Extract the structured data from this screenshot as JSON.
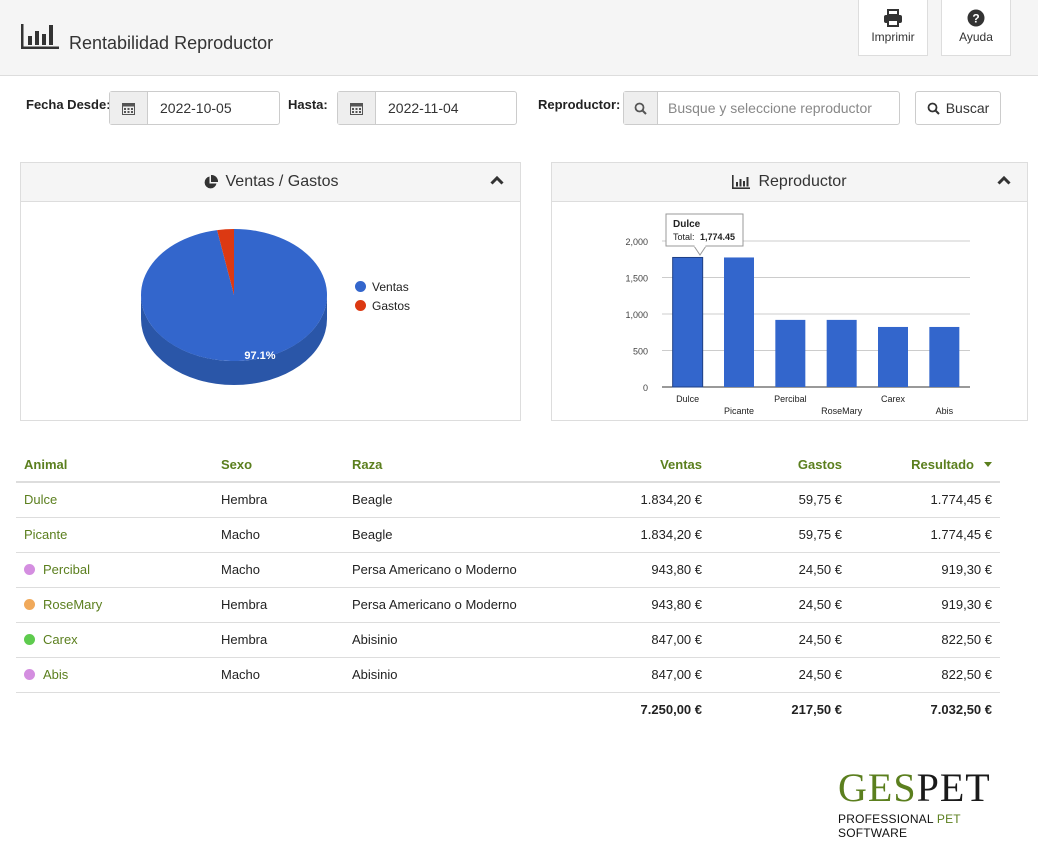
{
  "header": {
    "title": "Rentabilidad Reproductor",
    "print_label": "Imprimir",
    "help_label": "Ayuda",
    "title_icon": "bar-chart-icon"
  },
  "filters": {
    "fecha_desde_label": "Fecha Desde:",
    "fecha_desde_value": "2022-10-05",
    "hasta_label": "Hasta:",
    "hasta_value": "2022-11-04",
    "reproductor_label": "Reproductor:",
    "reproductor_placeholder": "Busque y seleccione reproductor",
    "buscar_label": "Buscar"
  },
  "pie_panel": {
    "title": "Ventas / Gastos",
    "slice_label": "97.1%"
  },
  "bar_panel": {
    "title": "Reproductor",
    "tooltip_name": "Dulce",
    "tooltip_total_label": "Total:",
    "tooltip_total_value": "1,774.45"
  },
  "chart_data": [
    {
      "type": "pie",
      "title": "Ventas / Gastos",
      "categories": [
        "Ventas",
        "Gastos"
      ],
      "values": [
        7250.0,
        217.5
      ],
      "colors": [
        "#3366cc",
        "#dc3912"
      ],
      "legend": "right"
    },
    {
      "type": "bar",
      "title": "Reproductor",
      "categories": [
        "Dulce",
        "Picante",
        "Percibal",
        "RoseMary",
        "Carex",
        "Abis"
      ],
      "values": [
        1774.45,
        1774.45,
        919.3,
        919.3,
        822.5,
        822.5
      ],
      "yticks": [
        "0",
        "500",
        "1,000",
        "1,500",
        "2,000"
      ],
      "ylim": [
        0,
        2000
      ],
      "grid": true,
      "color": "#3366cc"
    }
  ],
  "table": {
    "headers": {
      "animal": "Animal",
      "sexo": "Sexo",
      "raza": "Raza",
      "ventas": "Ventas",
      "gastos": "Gastos",
      "resultado": "Resultado"
    },
    "rows": [
      {
        "animal": "Dulce",
        "sexo": "Hembra",
        "raza": "Beagle",
        "ventas": "1.834,20 €",
        "gastos": "59,75 €",
        "resultado": "1.774,45 €",
        "dot": ""
      },
      {
        "animal": "Picante",
        "sexo": "Macho",
        "raza": "Beagle",
        "ventas": "1.834,20 €",
        "gastos": "59,75 €",
        "resultado": "1.774,45 €",
        "dot": ""
      },
      {
        "animal": "Percibal",
        "sexo": "Macho",
        "raza": "Persa Americano o Moderno",
        "ventas": "943,80 €",
        "gastos": "24,50 €",
        "resultado": "919,30 €",
        "dot": "#d48ee0"
      },
      {
        "animal": "RoseMary",
        "sexo": "Hembra",
        "raza": "Persa Americano o Moderno",
        "ventas": "943,80 €",
        "gastos": "24,50 €",
        "resultado": "919,30 €",
        "dot": "#f0a95a"
      },
      {
        "animal": "Carex",
        "sexo": "Hembra",
        "raza": "Abisinio",
        "ventas": "847,00 €",
        "gastos": "24,50 €",
        "resultado": "822,50 €",
        "dot": "#5ecb4e"
      },
      {
        "animal": "Abis",
        "sexo": "Macho",
        "raza": "Abisinio",
        "ventas": "847,00 €",
        "gastos": "24,50 €",
        "resultado": "822,50 €",
        "dot": "#d48ee0"
      }
    ],
    "totals": {
      "ventas": "7.250,00 €",
      "gastos": "217,50 €",
      "resultado": "7.032,50 €"
    }
  },
  "logo": {
    "word_a": "GES",
    "word_b": "PET",
    "sub_a": "PROFESSIONAL ",
    "sub_b": "PET",
    "sub_c": " SOFTWARE"
  },
  "colors": {
    "accent_green": "#5b7f1e",
    "bar_blue": "#3366cc"
  }
}
